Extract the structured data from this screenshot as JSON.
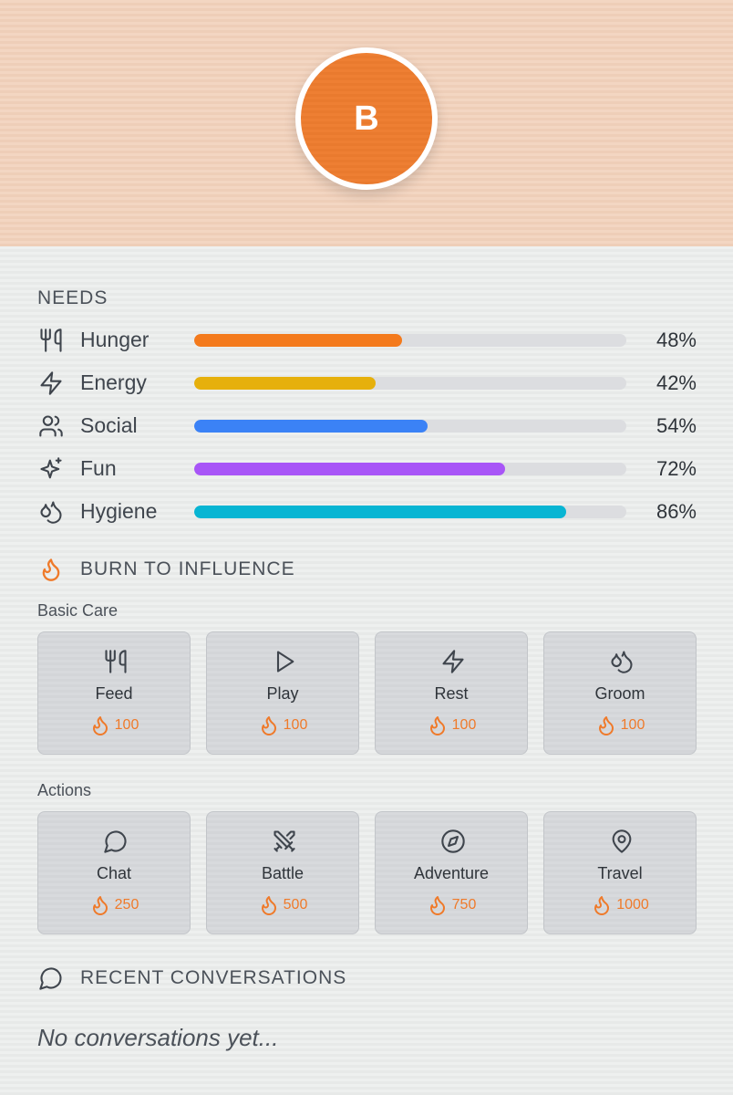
{
  "avatar": {
    "initial": "B"
  },
  "needs": {
    "title": "NEEDS",
    "items": [
      {
        "label": "Hunger",
        "value": 48,
        "value_label": "48%",
        "color": "#f47a1c"
      },
      {
        "label": "Energy",
        "value": 42,
        "value_label": "42%",
        "color": "#e6b00c"
      },
      {
        "label": "Social",
        "value": 54,
        "value_label": "54%",
        "color": "#3b82f6"
      },
      {
        "label": "Fun",
        "value": 72,
        "value_label": "72%",
        "color": "#a855f7"
      },
      {
        "label": "Hygiene",
        "value": 86,
        "value_label": "86%",
        "color": "#08b5d3"
      }
    ]
  },
  "influence": {
    "title": "BURN TO INFLUENCE",
    "groups": [
      {
        "title": "Basic Care",
        "actions": [
          {
            "label": "Feed",
            "cost": 100
          },
          {
            "label": "Play",
            "cost": 100
          },
          {
            "label": "Rest",
            "cost": 100
          },
          {
            "label": "Groom",
            "cost": 100
          }
        ]
      },
      {
        "title": "Actions",
        "actions": [
          {
            "label": "Chat",
            "cost": 250
          },
          {
            "label": "Battle",
            "cost": 500
          },
          {
            "label": "Adventure",
            "cost": 750
          },
          {
            "label": "Travel",
            "cost": 1000
          }
        ]
      }
    ]
  },
  "conversations": {
    "title": "RECENT CONVERSATIONS",
    "empty": "No conversations yet..."
  }
}
